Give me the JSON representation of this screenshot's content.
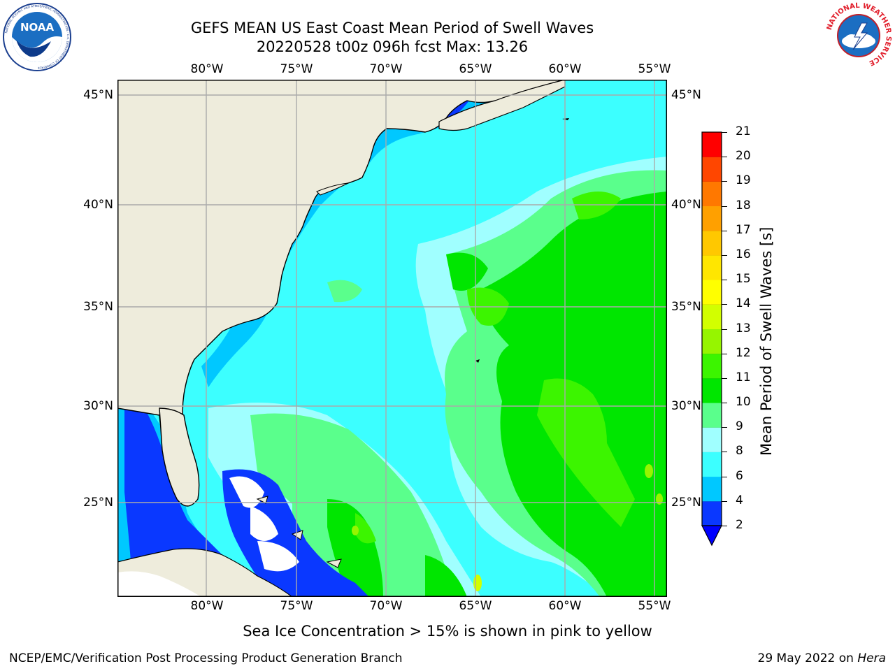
{
  "title": {
    "line1": "GEFS MEAN US East Coast Mean Period of Swell Waves",
    "line2": "20220528 t00z 096h fcst   Max: 13.26"
  },
  "logos": {
    "left": "NOAA",
    "left_ring": "NATIONAL OCEANIC AND ATMOSPHERIC ADMINISTRATION · U.S. DEPARTMENT OF COMMERCE",
    "right_ring": "NATIONAL WEATHER SERVICE"
  },
  "map": {
    "lon_labels": [
      "80°W",
      "75°W",
      "70°W",
      "65°W",
      "60°W",
      "55°W"
    ],
    "lat_labels": [
      "45°N",
      "40°N",
      "35°N",
      "30°N",
      "25°N"
    ],
    "grid": true,
    "colors": {
      "land": "#eeecdc",
      "missing": "#ffffff",
      "grid": "#aaaaaa"
    }
  },
  "colorbar": {
    "label": "Mean Period of Swell Waves [s]",
    "levels": [
      "2",
      "4",
      "6",
      "8",
      "9",
      "10",
      "11",
      "12",
      "13",
      "14",
      "15",
      "16",
      "17",
      "18",
      "19",
      "20",
      "21"
    ],
    "colors": [
      "#0a38ff",
      "#00c8ff",
      "#3cffff",
      "#a0ffff",
      "#5aff8c",
      "#00e600",
      "#3cf500",
      "#96f500",
      "#d2ff00",
      "#ffff00",
      "#ffe600",
      "#ffc800",
      "#ffa000",
      "#ff7800",
      "#ff4600",
      "#ff0000"
    ],
    "extend_color": "#0000ff"
  },
  "caption": "Sea Ice Concentration > 15% is shown in pink to yellow",
  "footer": {
    "left": "NCEP/EMC/Verification Post Processing Product Generation Branch",
    "right_date": "29 May 2022 on ",
    "right_machine": "Hera"
  }
}
